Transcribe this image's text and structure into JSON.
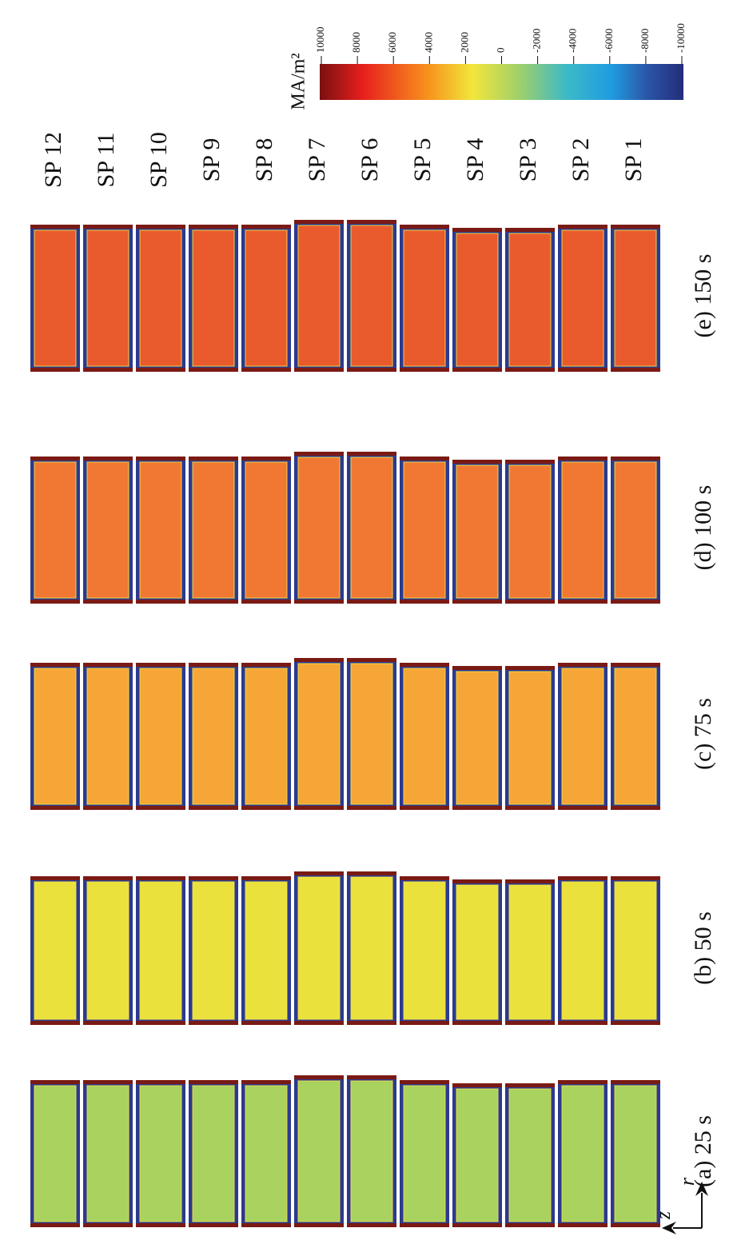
{
  "colorbar": {
    "unit": "MA/m²",
    "range": [
      10000,
      -10000
    ],
    "ticks": [
      10000,
      8000,
      6000,
      4000,
      2000,
      0,
      -2000,
      -4000,
      -6000,
      -8000,
      -10000
    ]
  },
  "columns": [
    "SP 12",
    "SP 11",
    "SP 10",
    "SP 9",
    "SP 8",
    "SP 7",
    "SP 6",
    "SP 5",
    "SP 4",
    "SP 3",
    "SP 2",
    "SP 1"
  ],
  "rows": [
    {
      "label": "(e) 150 s",
      "color": "#e95a2c"
    },
    {
      "label": "(d) 100 s",
      "color": "#f07832"
    },
    {
      "label": "(c) 75 s",
      "color": "#f6a636"
    },
    {
      "label": "(b) 50 s",
      "color": "#ebe13c"
    },
    {
      "label": "(a) 25 s",
      "color": "#a9d25e"
    }
  ],
  "axes": {
    "r": "r",
    "z": "z"
  }
}
